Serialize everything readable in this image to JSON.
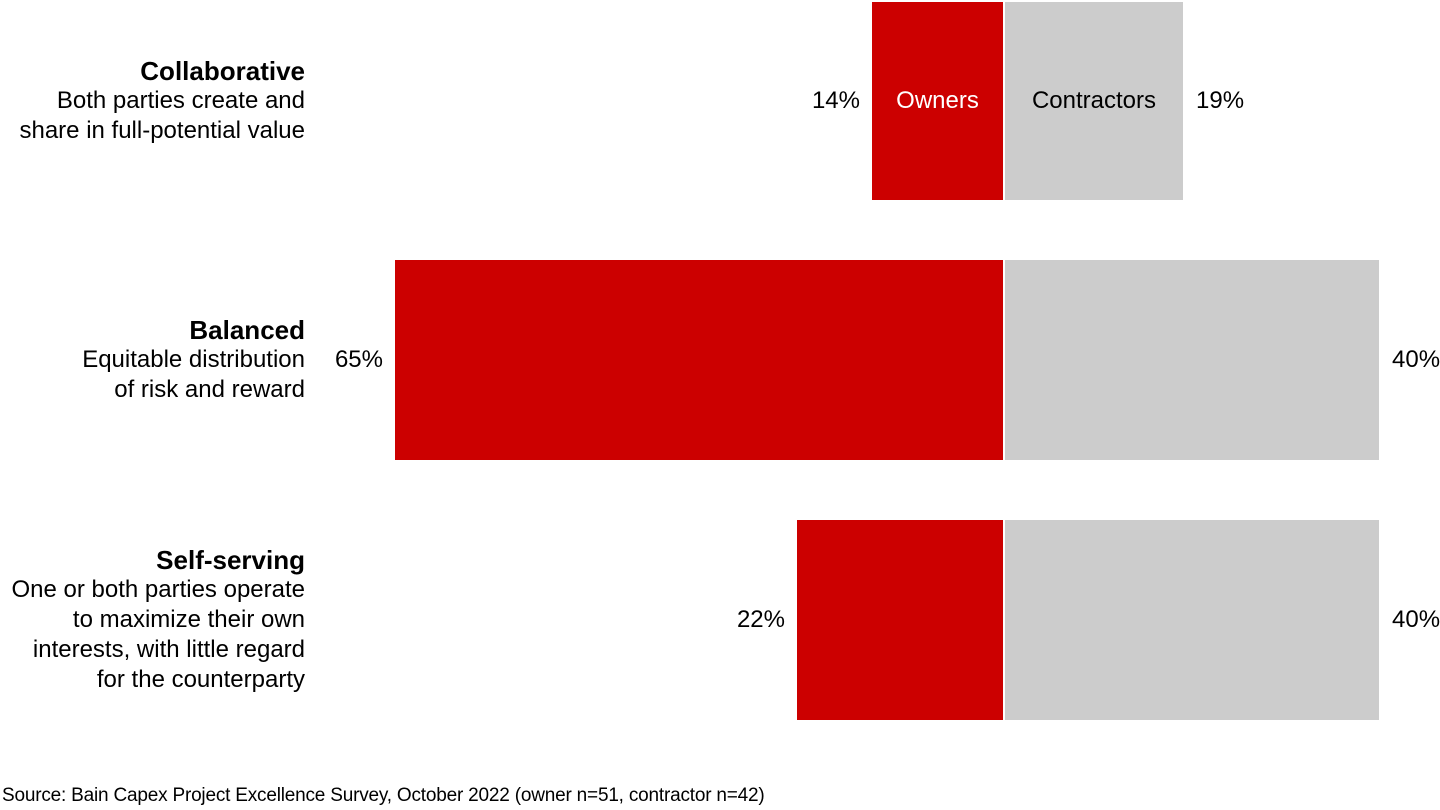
{
  "chart_data": {
    "type": "bar",
    "variant": "diverging-horizontal",
    "legend_position": "inside-first-bar",
    "grid": false,
    "axis_center_pct": 0,
    "series": [
      {
        "name": "Owners",
        "color": "#CC0000",
        "label_color": "#FFFFFF",
        "values": [
          14,
          65,
          22
        ]
      },
      {
        "name": "Contractors",
        "color": "#CCCCCC",
        "label_color": "#000000",
        "values": [
          19,
          40,
          40
        ]
      }
    ],
    "categories": [
      "Collaborative",
      "Balanced",
      "Self-serving"
    ],
    "rows": [
      {
        "category": "Collaborative",
        "description": "Both parties create and\nshare in full-potential value",
        "owners_pct": 14,
        "owners_label": "14%",
        "contractors_pct": 19,
        "contractors_label": "19%"
      },
      {
        "category": "Balanced",
        "description": "Equitable distribution\nof risk and reward",
        "owners_pct": 65,
        "owners_label": "65%",
        "contractors_pct": 40,
        "contractors_label": "40%"
      },
      {
        "category": "Self-serving",
        "description": "One or both parties operate\nto maximize their own\ninterests, with little regard\nfor the counterparty",
        "owners_pct": 22,
        "owners_label": "22%",
        "contractors_pct": 40,
        "contractors_label": "40%"
      }
    ]
  },
  "source_note": "Source: Bain Capex Project Excellence Survey, October 2022 (owner n=51, contractor n=42)",
  "colors": {
    "owners_bar": "#CC0000",
    "contractors_bar": "#CCCCCC",
    "text": "#000000",
    "background": "#FFFFFF"
  }
}
